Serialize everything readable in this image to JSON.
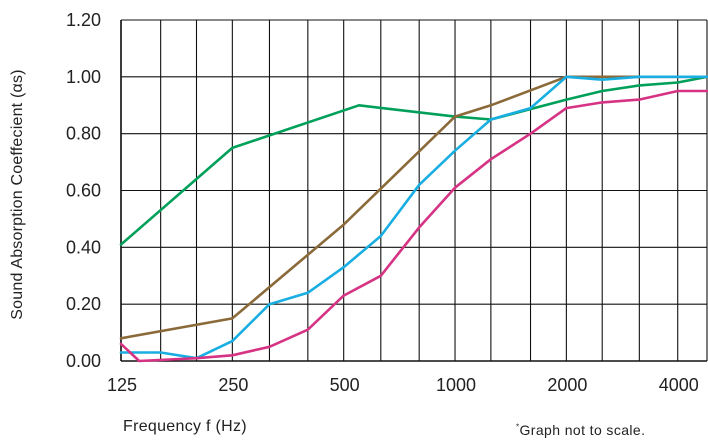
{
  "chart_data": {
    "type": "line",
    "xscale": "log2",
    "xlim": [
      125,
      4800
    ],
    "ylim": [
      0,
      1.2
    ],
    "yticks": [
      0,
      0.2,
      0.4,
      0.6,
      0.8,
      1.0,
      1.2
    ],
    "ytick_labels": [
      "0.00",
      "0.20",
      "0.40",
      "0.60",
      "0.80",
      "1.00",
      "1.20"
    ],
    "xticks": [
      125,
      250,
      500,
      1000,
      2000,
      4000
    ],
    "xtick_labels": [
      "125",
      "250",
      "500",
      "1000",
      "2000",
      "4000"
    ],
    "x_gridlines": [
      125,
      160,
      200,
      250,
      315,
      400,
      500,
      630,
      800,
      1000,
      1250,
      1600,
      2000,
      2500,
      3150,
      4000,
      5000
    ],
    "ylabel": "Sound Absorption Coeffecient (αs)",
    "xlabel": "Frequency f (Hz)",
    "grid": true,
    "legend": "none",
    "series": [
      {
        "color": "#00a05a",
        "points": [
          [
            125,
            0.41
          ],
          [
            250,
            0.75
          ],
          [
            550,
            0.9
          ],
          [
            1000,
            0.86
          ],
          [
            1250,
            0.85
          ],
          [
            2000,
            0.92
          ],
          [
            2500,
            0.95
          ],
          [
            3150,
            0.97
          ],
          [
            4000,
            0.98
          ],
          [
            4800,
            1.0
          ]
        ]
      },
      {
        "color": "#8b6a3a",
        "points": [
          [
            125,
            0.08
          ],
          [
            250,
            0.15
          ],
          [
            500,
            0.48
          ],
          [
            1000,
            0.86
          ],
          [
            1250,
            0.9
          ],
          [
            2000,
            1.0
          ],
          [
            2500,
            1.0
          ],
          [
            3150,
            1.0
          ],
          [
            4000,
            1.0
          ],
          [
            4800,
            1.0
          ]
        ]
      },
      {
        "color": "#19aee2",
        "points": [
          [
            125,
            0.03
          ],
          [
            160,
            0.03
          ],
          [
            200,
            0.01
          ],
          [
            250,
            0.07
          ],
          [
            315,
            0.2
          ],
          [
            400,
            0.24
          ],
          [
            500,
            0.33
          ],
          [
            630,
            0.44
          ],
          [
            800,
            0.62
          ],
          [
            1000,
            0.74
          ],
          [
            1250,
            0.85
          ],
          [
            1600,
            0.89
          ],
          [
            2000,
            1.0
          ],
          [
            2500,
            0.99
          ],
          [
            3150,
            1.0
          ],
          [
            4000,
            1.0
          ],
          [
            4800,
            1.0
          ]
        ]
      },
      {
        "color": "#d63384",
        "points": [
          [
            125,
            0.06
          ],
          [
            140,
            0.0
          ],
          [
            200,
            0.01
          ],
          [
            250,
            0.02
          ],
          [
            315,
            0.05
          ],
          [
            400,
            0.11
          ],
          [
            500,
            0.23
          ],
          [
            630,
            0.3
          ],
          [
            800,
            0.47
          ],
          [
            1000,
            0.61
          ],
          [
            1250,
            0.71
          ],
          [
            1600,
            0.8
          ],
          [
            2000,
            0.89
          ],
          [
            2500,
            0.91
          ],
          [
            3150,
            0.92
          ],
          [
            4000,
            0.95
          ],
          [
            4800,
            0.95
          ]
        ]
      }
    ]
  },
  "footnote": {
    "mark": "*",
    "text": "Graph not to scale."
  }
}
